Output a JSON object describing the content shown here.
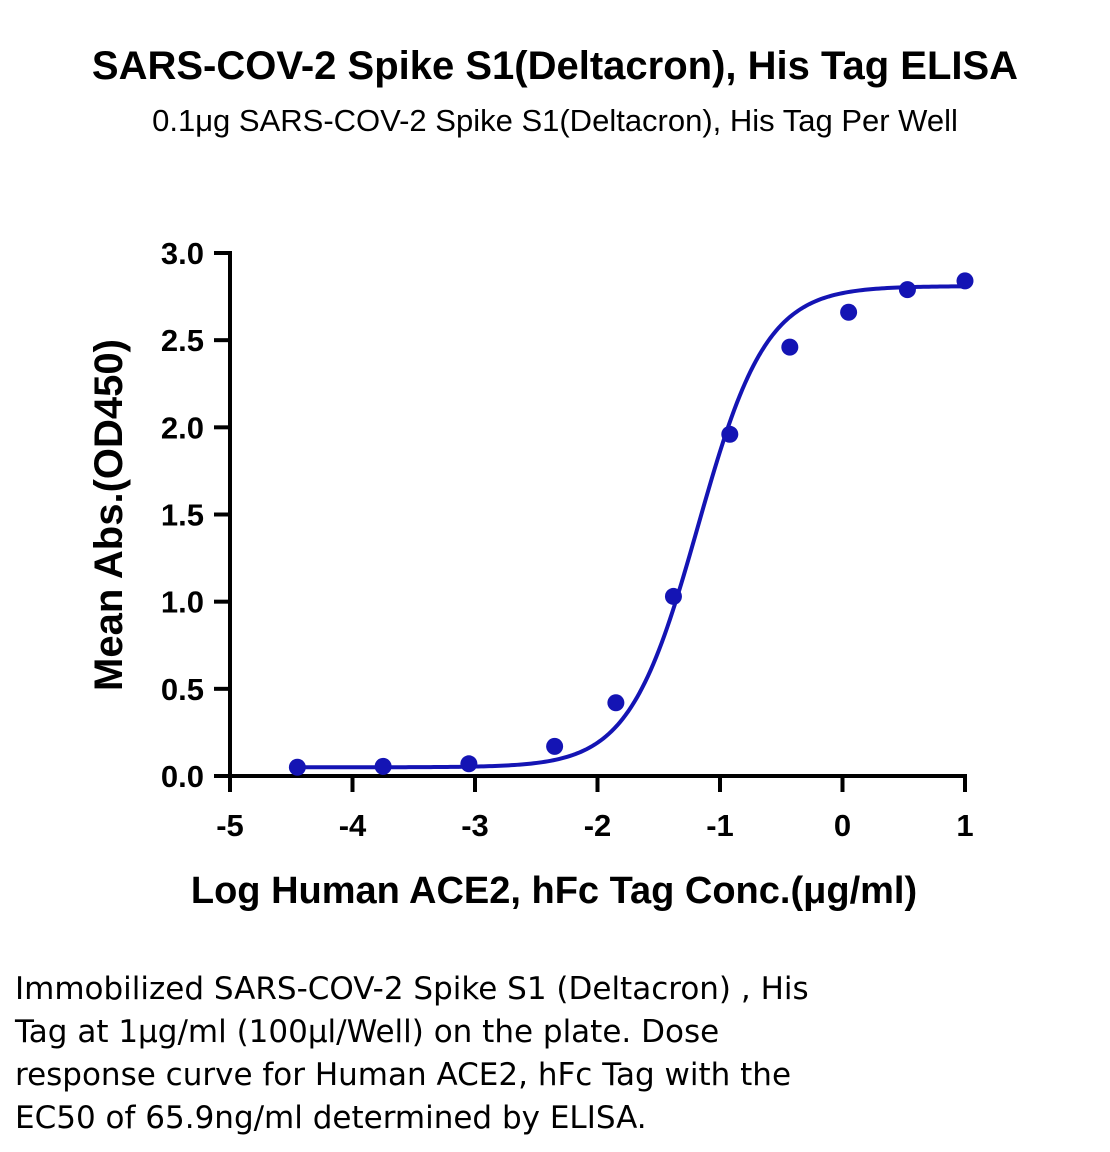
{
  "chart_data": {
    "type": "scatter",
    "title": "SARS-COV-2 Spike S1(Deltacron), His Tag ELISA",
    "subtitle": "0.1μg SARS-COV-2 Spike S1(Deltacron), His Tag Per Well",
    "xlabel": "Log Human ACE2, hFc Tag Conc.(μg/ml)",
    "ylabel": "Mean Abs.(OD450)",
    "xlim": [
      -5,
      1
    ],
    "ylim": [
      0,
      3
    ],
    "xticks": [
      "-5",
      "-4",
      "-3",
      "-2",
      "-1",
      "0",
      "1"
    ],
    "yticks": [
      "0.0",
      "0.5",
      "1.0",
      "1.5",
      "2.0",
      "2.5",
      "3.0"
    ],
    "grid": false,
    "color": "#1414B4",
    "series": [
      {
        "x": [
          -4.45,
          -3.75,
          -3.05,
          -2.35,
          -1.85,
          -1.38,
          -0.92,
          -0.43,
          0.05,
          0.53,
          1.0
        ],
        "y": [
          0.05,
          0.055,
          0.07,
          0.17,
          0.42,
          1.03,
          1.96,
          2.46,
          2.66,
          2.79,
          2.84
        ]
      }
    ],
    "fit_curve": {
      "model": "4PL",
      "bottom": 0.05,
      "top": 2.81,
      "log_ec50": -1.181,
      "hill_slope": 1.55
    }
  },
  "caption": {
    "lines": [
      "Immobilized SARS-COV-2 Spike S1 (Deltacron) , His",
      "Tag at 1μg/ml (100μl/Well) on the plate. Dose",
      "response curve for Human ACE2, hFc Tag with the",
      "EC50 of 65.9ng/ml determined by ELISA."
    ]
  }
}
